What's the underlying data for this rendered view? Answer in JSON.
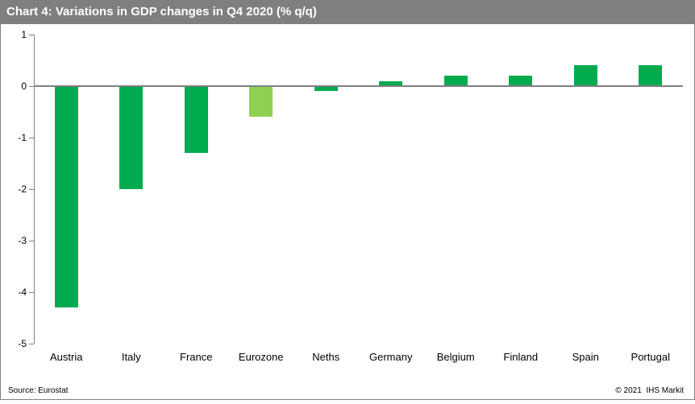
{
  "header": {
    "title": "Chart 4: Variations in GDP changes in Q4 2020 (% q/q)"
  },
  "footer": {
    "source": "Source: Eurostat",
    "copyright": "© 2021  IHS Markit"
  },
  "colors": {
    "header_bg": "#7f7f7f",
    "header_text": "#ffffff",
    "bar_default": "#00ab4f",
    "bar_highlight": "#8ed053",
    "axis": "#808080",
    "text": "#000000",
    "plot_bg": "#ffffff"
  },
  "chart_data": {
    "type": "bar",
    "title": "Chart 4: Variations in GDP changes in Q4 2020 (% q/q)",
    "categories": [
      "Austria",
      "Italy",
      "France",
      "Eurozone",
      "Neths",
      "Germany",
      "Belgium",
      "Finland",
      "Spain",
      "Portugal"
    ],
    "values": [
      -4.3,
      -2.0,
      -1.3,
      -0.6,
      -0.1,
      0.1,
      0.2,
      0.2,
      0.4,
      0.4
    ],
    "highlighted_category": "Eurozone",
    "xlabel": "",
    "ylabel": "",
    "ylim": [
      -5,
      1
    ],
    "yticks": [
      1,
      0,
      -1,
      -2,
      -3,
      -4,
      -5
    ],
    "grid": false,
    "legend": null
  }
}
